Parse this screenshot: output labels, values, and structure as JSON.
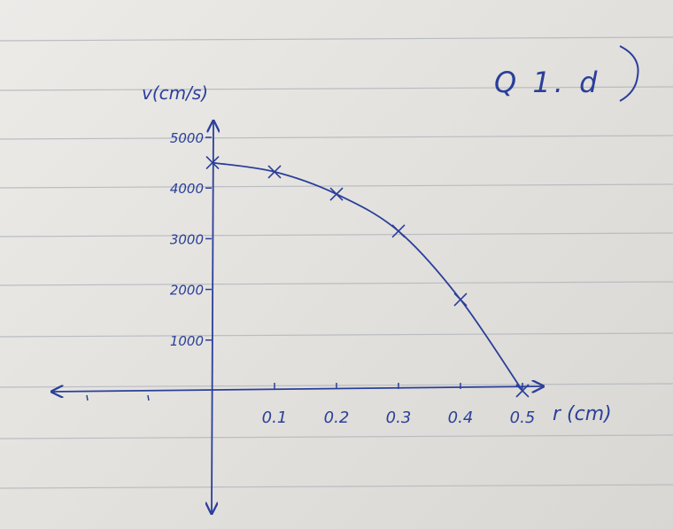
{
  "note_label": "Q 1. d",
  "chart_data": {
    "type": "line",
    "title": "",
    "xlabel": "r (cm)",
    "ylabel": "v(cm/s)",
    "xlim": [
      0,
      0.5
    ],
    "ylim": [
      0,
      5000
    ],
    "x_ticks": [
      0.1,
      0.2,
      0.3,
      0.4,
      0.5
    ],
    "x_tick_labels": [
      "0.1",
      "0.2",
      "0.3",
      "0.4",
      "0.5"
    ],
    "y_ticks": [
      1000,
      2000,
      3000,
      4000,
      5000
    ],
    "y_tick_labels": [
      "1000",
      "2000",
      "3000",
      "4000",
      "5000"
    ],
    "series": [
      {
        "x": [
          0,
          0.1,
          0.2,
          0.3,
          0.4,
          0.5
        ],
        "y": [
          4500,
          4320,
          3880,
          3150,
          1800,
          0
        ]
      }
    ],
    "grid": false,
    "colors": {
      "ink": "#2a3f9a",
      "paper_line": "#b9bcc2"
    }
  }
}
